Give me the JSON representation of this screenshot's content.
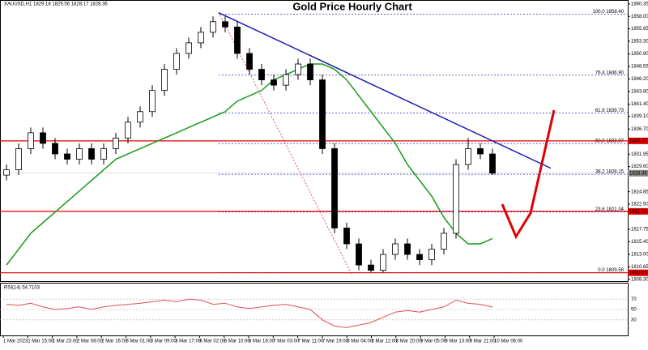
{
  "chart_data": {
    "type": "candlestick",
    "title": "Gold Price Hourly Chart",
    "header": "XAUUSD,H1 1829.18 1829.56 1828.17 1828.36",
    "time_labels": [
      "1 Mar 2023",
      "1 Mar 15:00",
      "1 Mar 23:00",
      "2 Mar 08:00",
      "2 Mar 16:00",
      "3 Mar 01:00",
      "3 Mar 09:00",
      "3 Mar 17:00",
      "6 Mar 02:00",
      "6 Mar 10:00",
      "6 Mar 18:00",
      "7 Mar 03:00",
      "7 Mar 11:00",
      "7 Mar 19:00",
      "8 Mar 04:00",
      "8 Mar 12:00",
      "8 Mar 20:00",
      "9 Mar 05:00",
      "9 Mar 13:00",
      "9 Mar 21:00",
      "10 Mar 06:00"
    ],
    "open": [
      1828,
      1829,
      1833,
      1836,
      1834,
      1832,
      1831,
      1833,
      1831,
      1833,
      1835,
      1838,
      1840,
      1844,
      1848,
      1851,
      1853,
      1855,
      1857,
      1856,
      1851,
      1848,
      1846,
      1845,
      1847,
      1849,
      1846,
      1833,
      1818,
      1815,
      1811,
      1810,
      1813,
      1815,
      1813,
      1812,
      1814,
      1817,
      1830,
      1833,
      1832
    ],
    "high": [
      1830,
      1834,
      1837,
      1837,
      1835,
      1833,
      1834,
      1834,
      1834,
      1836,
      1839,
      1841,
      1845,
      1849,
      1852,
      1854,
      1856,
      1858,
      1858,
      1857,
      1852,
      1849,
      1847,
      1848,
      1850,
      1850,
      1847,
      1834,
      1819,
      1816,
      1812,
      1814,
      1816,
      1816,
      1814,
      1815,
      1818,
      1831,
      1835,
      1834,
      1833
    ],
    "low": [
      1827,
      1828,
      1832,
      1833,
      1831,
      1830,
      1830,
      1830,
      1830,
      1832,
      1834,
      1837,
      1839,
      1843,
      1847,
      1850,
      1852,
      1854,
      1855,
      1850,
      1847,
      1845,
      1844,
      1844,
      1846,
      1845,
      1832,
      1817,
      1814,
      1810,
      1809.6,
      1809.6,
      1812,
      1812,
      1811,
      1811,
      1813,
      1816,
      1829,
      1831,
      1828
    ],
    "close": [
      1829,
      1833,
      1836,
      1834,
      1832,
      1831,
      1833,
      1831,
      1833,
      1835,
      1838,
      1840,
      1844,
      1848,
      1851,
      1853,
      1855,
      1857,
      1856,
      1851,
      1848,
      1846,
      1845,
      1847,
      1849,
      1846,
      1833,
      1818,
      1815,
      1811,
      1810,
      1813,
      1815,
      1813,
      1812,
      1814,
      1817,
      1830,
      1833,
      1832,
      1828.36
    ],
    "ylim": [
      1807.8,
      1861.1
    ],
    "yticks": [
      {
        "value": 1860.35,
        "label": "1860.35"
      },
      {
        "value": 1858,
        "label": "1858.00"
      },
      {
        "value": 1855.65,
        "label": "1855.65"
      },
      {
        "value": 1853.3,
        "label": "1853.30"
      },
      {
        "value": 1850.9,
        "label": "1850.90"
      },
      {
        "value": 1848.55,
        "label": "1848.55"
      },
      {
        "value": 1846.2,
        "label": "1846.20"
      },
      {
        "value": 1843.8,
        "label": "1843.80"
      },
      {
        "value": 1841.4,
        "label": "1841.40"
      },
      {
        "value": 1839.1,
        "label": "1839.10"
      },
      {
        "value": 1836.7,
        "label": "1836.70"
      },
      {
        "value": 1831.95,
        "label": "1831.95"
      },
      {
        "value": 1829.6,
        "label": "1829.60"
      },
      {
        "value": 1824.85,
        "label": "1824.85"
      },
      {
        "value": 1822.5,
        "label": "1822.50"
      },
      {
        "value": 1817.75,
        "label": "1817.75"
      },
      {
        "value": 1815.4,
        "label": "1815.40"
      },
      {
        "value": 1813,
        "label": "1813.00"
      },
      {
        "value": 1810.65,
        "label": "1810.65"
      },
      {
        "value": 1808.3,
        "label": "1808.30"
      }
    ],
    "price_marks": [
      {
        "value": 1834.47,
        "color": "#e00000"
      },
      {
        "value": 1828.36,
        "color": "#888888"
      },
      {
        "value": 1821.14,
        "color": "#e00000"
      },
      {
        "value": 1809.53,
        "color": "#e00000"
      }
    ],
    "fib_levels": [
      {
        "value": 1858.4,
        "label": "100.0 1858.40"
      },
      {
        "value": 1846.9,
        "label": "76.4 1846.90"
      },
      {
        "value": 1839.73,
        "label": "61.8 1839.73"
      },
      {
        "value": 1833.97,
        "label": "50.0 1833.97"
      },
      {
        "value": 1828.15,
        "label": "38.2 1828.15"
      },
      {
        "value": 1821.04,
        "label": "23.6 1821.04"
      },
      {
        "value": 1809.58,
        "label": "0.0 1809.58"
      }
    ],
    "ma": {
      "color": "#1a9a1a",
      "values": [
        1811,
        1814,
        1817,
        1819,
        1821,
        1823,
        1825,
        1827,
        1829,
        1831,
        1832,
        1833,
        1834,
        1835,
        1836,
        1837,
        1838,
        1839,
        1840,
        1842,
        1843,
        1844,
        1846,
        1847,
        1848,
        1849,
        1849,
        1848,
        1846,
        1843,
        1840,
        1837,
        1834,
        1830,
        1827,
        1824,
        1820,
        1817,
        1815,
        1815,
        1816
      ]
    },
    "trendline": {
      "color": "#1c1cb4",
      "values": [
        1858.7,
        1829.3
      ]
    },
    "rsi": {
      "label": "RSI(14) 54.7103",
      "color": "#e05050",
      "ylim": [
        0,
        100
      ],
      "yticks": [
        70,
        50,
        30
      ],
      "values": [
        60,
        58,
        62,
        55,
        50,
        52,
        55,
        50,
        55,
        58,
        60,
        62,
        65,
        68,
        65,
        70,
        68,
        60,
        62,
        55,
        52,
        55,
        58,
        60,
        55,
        50,
        30,
        18,
        15,
        20,
        25,
        35,
        45,
        48,
        45,
        50,
        55,
        68,
        62,
        60,
        54.7103
      ]
    }
  }
}
